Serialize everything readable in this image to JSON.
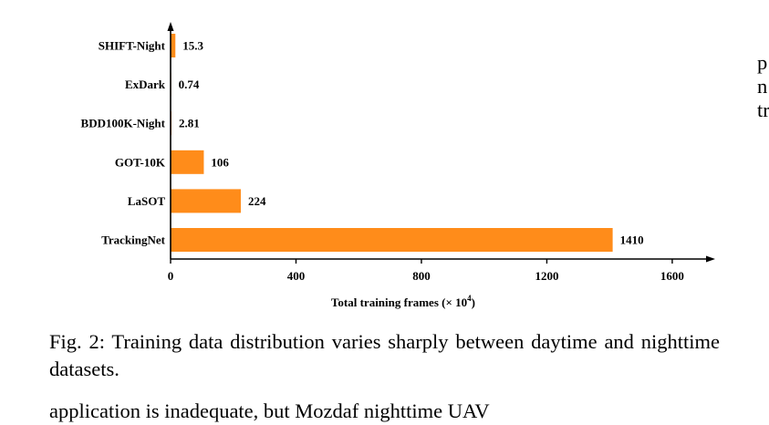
{
  "chart_data": {
    "type": "bar",
    "orientation": "horizontal",
    "categories": [
      "SHIFT-Night",
      "ExDark",
      "BDD100K-Night",
      "GOT-10K",
      "LaSOT",
      "TrackingNet"
    ],
    "values": [
      15.3,
      0.74,
      2.81,
      106,
      224,
      1410
    ],
    "value_labels": [
      "15.3",
      "0.74",
      "2.81",
      "106",
      "224",
      "1410"
    ],
    "xlabel": "Total training frames (× 10",
    "xlabel_sup": "4",
    "xlabel_suffix": ")",
    "xlim": [
      0,
      1700
    ],
    "xticks": [
      0,
      400,
      800,
      1200,
      1600
    ],
    "xtick_labels": [
      "0",
      "400",
      "800",
      "1200",
      "1600"
    ],
    "bar_color": "#ff8c1a",
    "grid": false,
    "legend": "none"
  },
  "caption": {
    "text": "Fig. 2: Training data distribution varies sharply between daytime and nighttime datasets."
  },
  "body_text": {
    "next_line": "application is inadequate, but Mozdaf nighttime UAV"
  },
  "side_text": {
    "lines": [
      "p",
      "n",
      "tr"
    ]
  }
}
